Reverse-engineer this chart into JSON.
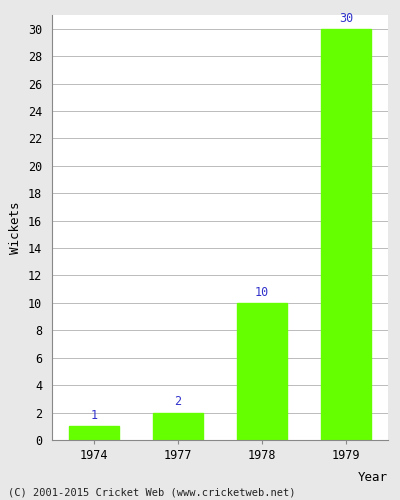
{
  "categories": [
    "1974",
    "1977",
    "1978",
    "1979"
  ],
  "values": [
    1,
    2,
    10,
    30
  ],
  "bar_color": "#66ff00",
  "bar_width": 0.6,
  "xlabel": "Year",
  "ylabel": "Wickets",
  "ylim": [
    0,
    31
  ],
  "yticks": [
    0,
    2,
    4,
    6,
    8,
    10,
    12,
    14,
    16,
    18,
    20,
    22,
    24,
    26,
    28,
    30
  ],
  "label_color": "#3333cc",
  "label_fontsize": 8.5,
  "axis_label_fontsize": 9,
  "tick_fontsize": 8.5,
  "footer_text": "(C) 2001-2015 Cricket Web (www.cricketweb.net)",
  "footer_fontsize": 7.5,
  "background_color": "#e8e8e8",
  "plot_bg_color": "#ffffff",
  "grid_color": "#bbbbbb"
}
